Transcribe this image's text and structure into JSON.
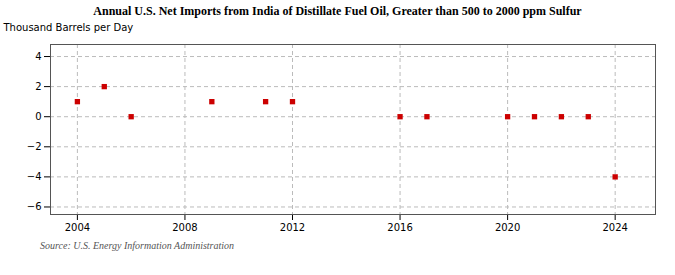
{
  "chart_data": {
    "type": "scatter",
    "title": "Annual U.S. Net Imports from India of Distillate Fuel Oil, Greater than 500 to 2000 ppm Sulfur",
    "ylabel": "Thousand Barrels per Day",
    "source": "Source: U.S. Energy Information Administration",
    "x": [
      2004,
      2005,
      2006,
      2009,
      2011,
      2012,
      2016,
      2017,
      2020,
      2021,
      2022,
      2023,
      2024
    ],
    "values": [
      1.0,
      2.0,
      0.0,
      1.0,
      1.0,
      1.0,
      0.0,
      0.0,
      0.0,
      0.0,
      0.0,
      0.0,
      -4.0
    ],
    "color": "#cc0000",
    "marker": "square",
    "xlim": [
      2003,
      2025.5
    ],
    "xticks": [
      2004,
      2008,
      2012,
      2016,
      2020,
      2024
    ],
    "ylim": [
      -6.5,
      4.8
    ],
    "yticks": [
      -6,
      -4,
      -2,
      0,
      2,
      4
    ],
    "grid": true
  }
}
